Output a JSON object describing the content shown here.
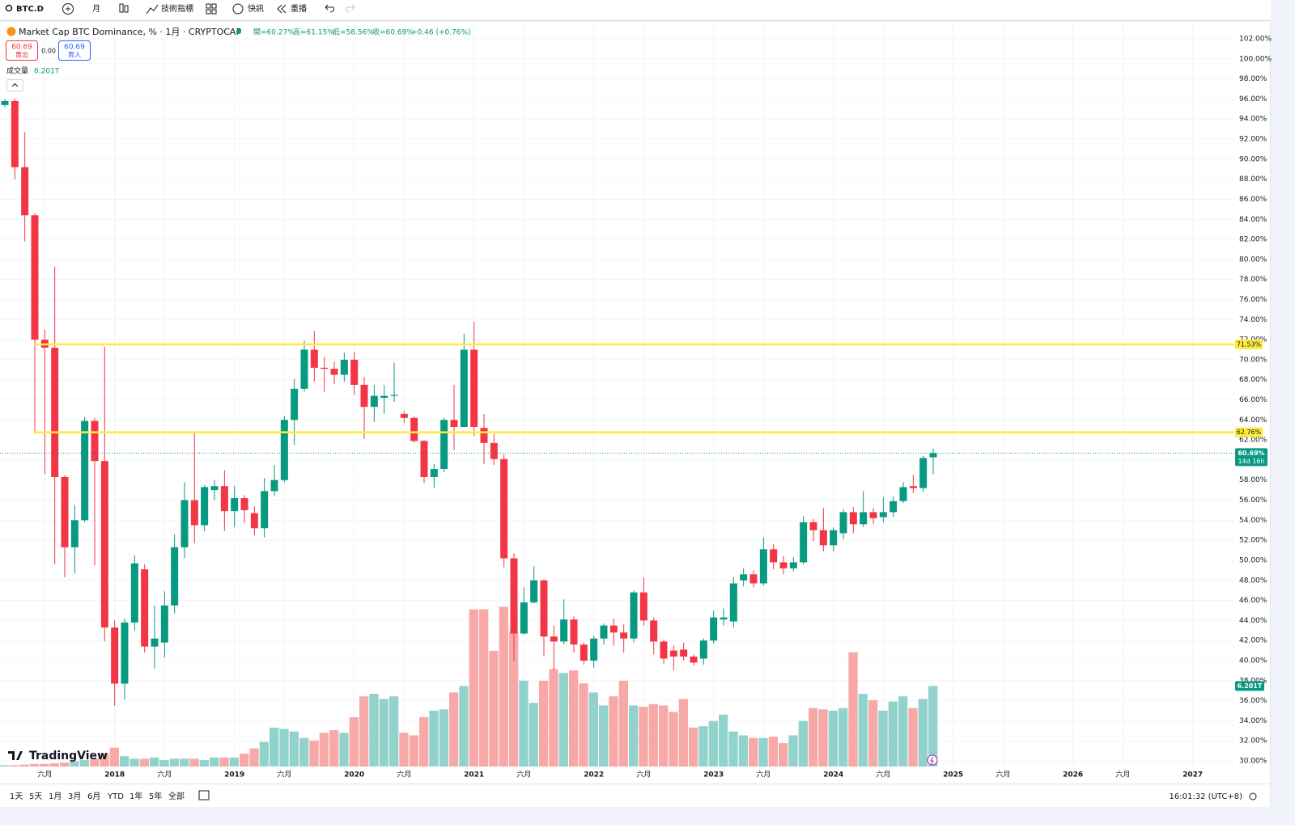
{
  "toolbar": {
    "symbol": "BTC.D",
    "interval": "月",
    "indicators": "技術指標",
    "alerts": "快訊",
    "replay": "重播"
  },
  "legend": {
    "title": "Market Cap BTC Dominance, % · 1月 · CRYPTOCAP",
    "ohlc": [
      "開=60.27%",
      "高=61.15%",
      "低=58.56%",
      "收=60.69%"
    ],
    "change": "+0.46 (+0.76%)",
    "sell_price": "60.69",
    "sell": "賣出",
    "spread": "0.00",
    "buy_price": "60.69",
    "buy": "買入",
    "volume_name": "成交量",
    "volume_value": "6.201T"
  },
  "branding": "TradingView",
  "footer": {
    "ranges": [
      "1天",
      "5天",
      "1月",
      "3月",
      "6月",
      "YTD",
      "1年",
      "5年",
      "全部"
    ],
    "clock": "16:01:32 (UTC+8)"
  },
  "chart_data": {
    "type": "candlestick",
    "grid": true,
    "up_color": "#089981",
    "down_color": "#f23645",
    "volume_up_color": "#92d2cc",
    "volume_down_color": "#f7a9a7",
    "x": [
      "2017-02",
      "2017-03",
      "2017-04",
      "2017-05",
      "2017-06",
      "2017-07",
      "2017-08",
      "2017-09",
      "2017-10",
      "2017-11",
      "2017-12",
      "2018-01",
      "2018-02",
      "2018-03",
      "2018-04",
      "2018-05",
      "2018-06",
      "2018-07",
      "2018-08",
      "2018-09",
      "2018-10",
      "2018-11",
      "2018-12",
      "2019-01",
      "2019-02",
      "2019-03",
      "2019-04",
      "2019-05",
      "2019-06",
      "2019-07",
      "2019-08",
      "2019-09",
      "2019-10",
      "2019-11",
      "2019-12",
      "2020-01",
      "2020-02",
      "2020-03",
      "2020-04",
      "2020-05",
      "2020-06",
      "2020-07",
      "2020-08",
      "2020-09",
      "2020-10",
      "2020-11",
      "2020-12",
      "2021-01",
      "2021-02",
      "2021-03",
      "2021-04",
      "2021-05",
      "2021-06",
      "2021-07",
      "2021-08",
      "2021-09",
      "2021-10",
      "2021-11",
      "2021-12",
      "2022-01",
      "2022-02",
      "2022-03",
      "2022-04",
      "2022-05",
      "2022-06",
      "2022-07",
      "2022-08",
      "2022-09",
      "2022-10",
      "2022-11",
      "2022-12",
      "2023-01",
      "2023-02",
      "2023-03",
      "2023-04",
      "2023-05",
      "2023-06",
      "2023-07",
      "2023-08",
      "2023-09",
      "2023-10",
      "2023-11",
      "2023-12",
      "2024-01",
      "2024-02",
      "2024-03",
      "2024-04",
      "2024-05",
      "2024-06",
      "2024-07",
      "2024-08",
      "2024-09",
      "2024-10",
      "2024-11"
    ],
    "open": [
      95.4,
      95.8,
      89.2,
      84.4,
      72.0,
      71.2,
      58.3,
      51.3,
      54.0,
      63.9,
      59.9,
      43.3,
      37.7,
      43.8,
      49.1,
      41.4,
      41.8,
      45.5,
      51.3,
      56.0,
      53.5,
      57.0,
      57.4,
      54.9,
      56.2,
      54.7,
      53.2,
      56.9,
      58.0,
      64.0,
      67.1,
      71.0,
      69.2,
      69.1,
      68.5,
      70.0,
      67.5,
      65.3,
      66.2,
      66.4,
      64.6,
      64.2,
      61.9,
      58.3,
      59.1,
      64.0,
      63.3,
      71.0,
      63.2,
      61.7,
      60.1,
      50.2,
      42.7,
      45.8,
      48.0,
      42.4,
      41.9,
      44.1,
      41.6,
      40.0,
      42.2,
      43.5,
      42.8,
      42.2,
      46.8,
      44.0,
      41.9,
      41.0,
      41.1,
      40.4,
      40.2,
      42.0,
      44.1,
      43.9,
      48.0,
      48.6,
      47.7,
      51.1,
      49.8,
      49.2,
      49.8,
      53.8,
      53.0,
      51.5,
      52.7,
      54.8,
      53.6,
      54.8,
      54.3,
      54.8,
      55.9,
      57.4,
      57.2,
      60.27
    ],
    "high": [
      96.0,
      96.0,
      92.7,
      84.6,
      73.0,
      79.3,
      58.5,
      55.5,
      64.3,
      64.2,
      71.3,
      44.0,
      44.2,
      50.5,
      49.6,
      45.5,
      46.9,
      52.6,
      57.8,
      62.7,
      57.5,
      58.0,
      59.0,
      57.4,
      56.5,
      55.4,
      58.2,
      59.5,
      64.4,
      68.1,
      71.9,
      72.9,
      70.3,
      69.8,
      70.7,
      70.8,
      68.3,
      67.5,
      67.5,
      69.7,
      64.9,
      64.4,
      62.0,
      59.6,
      64.2,
      67.5,
      72.6,
      73.8,
      64.6,
      62.6,
      60.6,
      50.7,
      47.3,
      49.4,
      48.1,
      43.5,
      46.1,
      44.4,
      41.8,
      42.5,
      43.7,
      44.2,
      43.6,
      47.0,
      48.3,
      44.3,
      42.1,
      41.5,
      41.8,
      40.6,
      42.2,
      45.0,
      45.2,
      48.3,
      49.2,
      49.0,
      52.3,
      51.6,
      50.4,
      50.3,
      54.4,
      54.1,
      55.2,
      53.3,
      55.1,
      55.3,
      56.9,
      55.2,
      56.3,
      56.4,
      57.8,
      58.5,
      60.4,
      61.15
    ],
    "low": [
      95.2,
      88.0,
      81.8,
      62.6,
      58.6,
      49.6,
      48.3,
      48.7,
      53.8,
      49.5,
      41.9,
      35.5,
      36.1,
      43.0,
      40.8,
      39.2,
      40.3,
      44.7,
      50.2,
      51.7,
      52.9,
      56.0,
      52.9,
      53.3,
      53.7,
      52.5,
      52.3,
      56.4,
      57.8,
      61.5,
      66.8,
      67.8,
      66.8,
      67.6,
      67.8,
      66.5,
      62.1,
      63.8,
      64.6,
      65.8,
      63.7,
      61.7,
      57.7,
      57.2,
      58.8,
      61.0,
      63.3,
      62.4,
      59.6,
      59.5,
      49.3,
      39.9,
      42.6,
      45.7,
      40.5,
      39.0,
      41.6,
      40.8,
      39.6,
      39.3,
      41.6,
      41.5,
      40.8,
      41.8,
      43.5,
      40.6,
      39.7,
      39.0,
      40.0,
      39.5,
      39.6,
      41.7,
      43.5,
      43.3,
      47.4,
      47.3,
      47.5,
      49.1,
      48.6,
      48.9,
      49.6,
      51.9,
      50.9,
      50.9,
      52.1,
      52.7,
      53.3,
      53.6,
      53.8,
      54.3,
      55.7,
      56.7,
      56.8,
      58.56
    ],
    "close": [
      95.8,
      89.2,
      84.4,
      72.0,
      71.2,
      58.3,
      51.3,
      54.0,
      63.9,
      59.9,
      43.3,
      37.7,
      43.8,
      49.7,
      41.4,
      42.2,
      45.5,
      51.3,
      56.0,
      53.5,
      57.3,
      57.4,
      54.9,
      56.2,
      55.0,
      53.2,
      56.9,
      58.0,
      64.0,
      67.1,
      71.0,
      69.2,
      69.1,
      68.5,
      70.0,
      67.5,
      65.3,
      66.4,
      66.4,
      66.5,
      64.2,
      61.9,
      58.3,
      59.1,
      64.0,
      63.3,
      71.0,
      63.3,
      61.7,
      60.1,
      50.2,
      42.7,
      45.8,
      48.0,
      42.4,
      41.9,
      44.1,
      41.6,
      40.0,
      42.2,
      43.5,
      42.8,
      42.2,
      46.8,
      44.0,
      41.9,
      40.2,
      40.4,
      40.4,
      39.8,
      42.0,
      44.3,
      44.3,
      47.7,
      48.6,
      47.7,
      51.1,
      49.8,
      49.2,
      49.8,
      53.8,
      53.0,
      51.5,
      53.0,
      54.8,
      53.6,
      54.8,
      54.2,
      54.8,
      55.9,
      57.3,
      57.2,
      60.2,
      60.69
    ],
    "volume": [
      0.1,
      0.1,
      0.15,
      0.2,
      0.2,
      0.25,
      0.3,
      0.4,
      0.5,
      0.6,
      1.0,
      1.45,
      0.8,
      0.6,
      0.6,
      0.7,
      0.5,
      0.6,
      0.6,
      0.6,
      0.5,
      0.7,
      0.7,
      0.7,
      1.0,
      1.4,
      1.9,
      3.0,
      2.9,
      2.7,
      2.2,
      2.0,
      2.6,
      2.8,
      2.6,
      3.8,
      5.4,
      5.6,
      5.2,
      5.4,
      2.6,
      2.4,
      3.8,
      4.3,
      4.4,
      5.7,
      6.2,
      12.1,
      12.1,
      8.9,
      12.3,
      10.4,
      6.6,
      4.9,
      6.6,
      7.5,
      7.2,
      7.4,
      6.4,
      5.7,
      4.7,
      5.4,
      6.6,
      4.7,
      4.6,
      4.8,
      4.7,
      4.2,
      5.2,
      3.0,
      3.1,
      3.5,
      4.0,
      2.7,
      2.4,
      2.2,
      2.2,
      2.3,
      1.8,
      2.4,
      3.5,
      4.5,
      4.4,
      4.3,
      4.5,
      8.8,
      5.6,
      5.1,
      4.3,
      5.0,
      5.4,
      4.5,
      5.2,
      6.201
    ],
    "volume_last_label": "6.201T",
    "volume_lim": [
      0,
      56
    ],
    "ylim": [
      30,
      102
    ],
    "yticks": [
      {
        "value": 30,
        "label": "30.00%"
      },
      {
        "value": 32,
        "label": "32.00%"
      },
      {
        "value": 34,
        "label": "34.00%"
      },
      {
        "value": 36,
        "label": "36.00%"
      },
      {
        "value": 38,
        "label": "38.00%"
      },
      {
        "value": 40,
        "label": "40.00%"
      },
      {
        "value": 42,
        "label": "42.00%"
      },
      {
        "value": 44,
        "label": "44.00%"
      },
      {
        "value": 46,
        "label": "46.00%"
      },
      {
        "value": 48,
        "label": "48.00%"
      },
      {
        "value": 50,
        "label": "50.00%"
      },
      {
        "value": 52,
        "label": "52.00%"
      },
      {
        "value": 54,
        "label": "54.00%"
      },
      {
        "value": 56,
        "label": "56.00%"
      },
      {
        "value": 58,
        "label": "58.00%"
      },
      {
        "value": 60,
        "label": "60.00%"
      },
      {
        "value": 62,
        "label": "62.00%"
      },
      {
        "value": 64,
        "label": "64.00%"
      },
      {
        "value": 66,
        "label": "66.00%"
      },
      {
        "value": 68,
        "label": "68.00%"
      },
      {
        "value": 70,
        "label": "70.00%"
      },
      {
        "value": 72,
        "label": "72.00%"
      },
      {
        "value": 74,
        "label": "74.00%"
      },
      {
        "value": 76,
        "label": "76.00%"
      },
      {
        "value": 78,
        "label": "78.00%"
      },
      {
        "value": 80,
        "label": "80.00%"
      },
      {
        "value": 82,
        "label": "82.00%"
      },
      {
        "value": 84,
        "label": "84.00%"
      },
      {
        "value": 86,
        "label": "86.00%"
      },
      {
        "value": 88,
        "label": "88.00%"
      },
      {
        "value": 90,
        "label": "90.00%"
      },
      {
        "value": 92,
        "label": "92.00%"
      },
      {
        "value": 94,
        "label": "94.00%"
      },
      {
        "value": 96,
        "label": "96.00%"
      },
      {
        "value": 98,
        "label": "98.00%"
      },
      {
        "value": 100,
        "label": "100.00%"
      },
      {
        "value": 102,
        "label": "102.00%"
      }
    ],
    "xticks": [
      {
        "value": "2017-06",
        "label": "六月"
      },
      {
        "value": "2018-01",
        "label": "2018"
      },
      {
        "value": "2018-06",
        "label": "六月"
      },
      {
        "value": "2019-01",
        "label": "2019"
      },
      {
        "value": "2019-06",
        "label": "六月"
      },
      {
        "value": "2020-01",
        "label": "2020"
      },
      {
        "value": "2020-06",
        "label": "六月"
      },
      {
        "value": "2021-01",
        "label": "2021"
      },
      {
        "value": "2021-06",
        "label": "六月"
      },
      {
        "value": "2022-01",
        "label": "2022"
      },
      {
        "value": "2022-06",
        "label": "六月"
      },
      {
        "value": "2023-01",
        "label": "2023"
      },
      {
        "value": "2023-06",
        "label": "六月"
      },
      {
        "value": "2024-01",
        "label": "2024"
      },
      {
        "value": "2024-06",
        "label": "六月"
      },
      {
        "value": "2025-01",
        "label": "2025"
      },
      {
        "value": "2025-06",
        "label": "六月"
      },
      {
        "value": "2026-01",
        "label": "2026"
      },
      {
        "value": "2026-06",
        "label": "六月"
      },
      {
        "value": "2027-01",
        "label": "2027"
      }
    ],
    "hlines": [
      {
        "value": 71.53,
        "label": "71.53%",
        "color": "#ffeb3b"
      },
      {
        "value": 62.76,
        "label": "62.76%",
        "color": "#ffeb3b"
      }
    ],
    "last": {
      "value": 60.69,
      "label": "60.69%",
      "countdown": "14d 16h"
    }
  }
}
